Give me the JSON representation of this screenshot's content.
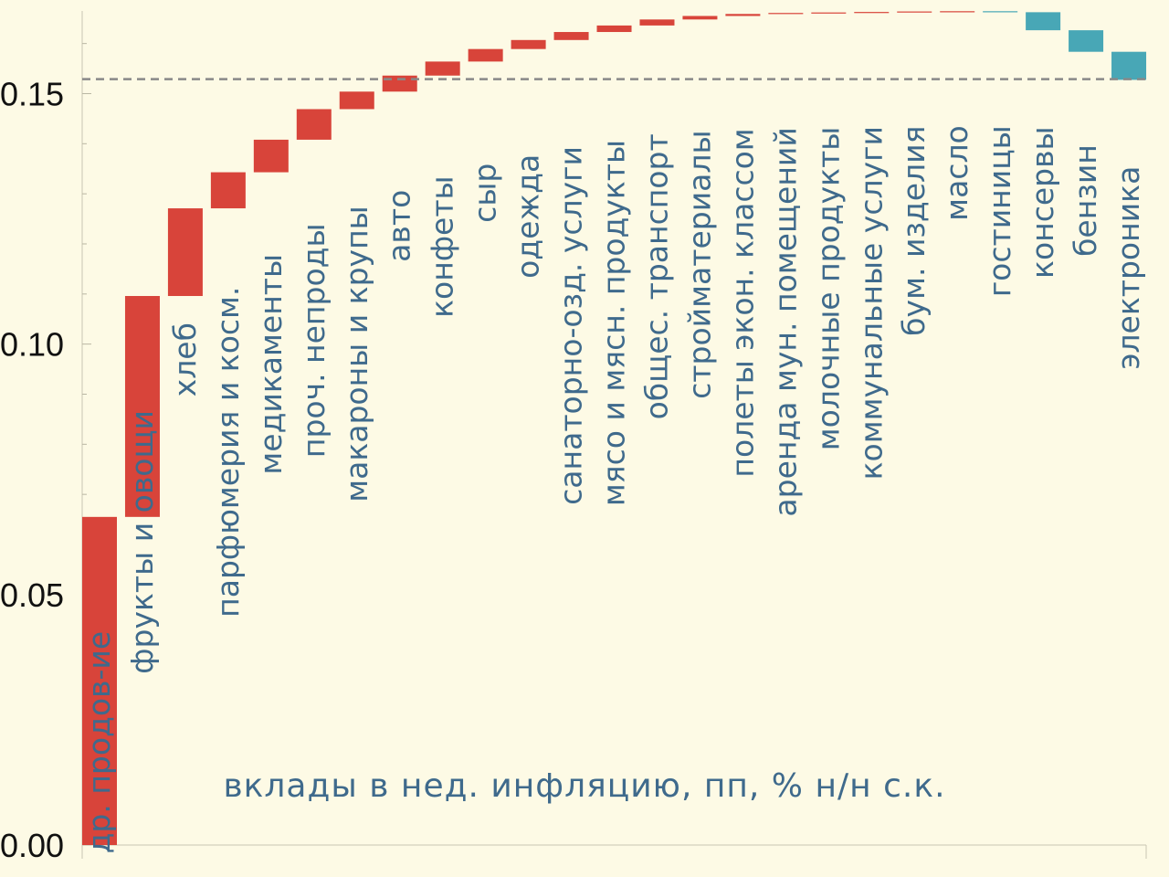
{
  "chart_data": {
    "type": "bar",
    "subtype": "waterfall",
    "title": "вклады в нед. инфляцию, пп, % н/н с.к.",
    "xlabel": "",
    "ylabel": "",
    "ylim": [
      0,
      0.1665
    ],
    "yticks": [
      "0.00",
      "0.05",
      "0.10",
      "0.15"
    ],
    "ytick_values": [
      0,
      0.05,
      0.1,
      0.15
    ],
    "total_line": 0.1529,
    "colors": {
      "positive": "#d8443a",
      "negative": "#48a7b6",
      "total_line": "#888888",
      "label": "#3f6a8c",
      "background": "#fdfae5"
    },
    "categories": [
      "др. продов-ие",
      "фрукты и овощи",
      "хлеб",
      "парфюмерия и косм.",
      "медикаменты",
      "проч. непроды",
      "макароны и крупы",
      "авто",
      "конфеты",
      "сыр",
      "одежда",
      "санаторно-озд. услуги",
      "мясо и мясн. продукты",
      "общес. транспорт",
      "стройматериалы",
      "полеты экон. классом",
      "аренда мун. помещений",
      "молочные продукты",
      "коммунальные услуги",
      "бум. изделия",
      "масло",
      "гостиницы",
      "консервы",
      "бензин",
      "электроника"
    ],
    "values": [
      0.0655,
      0.0441,
      0.0175,
      0.0072,
      0.0065,
      0.0061,
      0.0035,
      0.0032,
      0.0028,
      0.0025,
      0.0018,
      0.0016,
      0.0013,
      0.0012,
      0.0007,
      0.0004,
      0.0002,
      0.0001,
      0.0001,
      0.0001,
      5e-05,
      -0.0002,
      -0.0036,
      -0.0043,
      -0.0056
    ]
  }
}
